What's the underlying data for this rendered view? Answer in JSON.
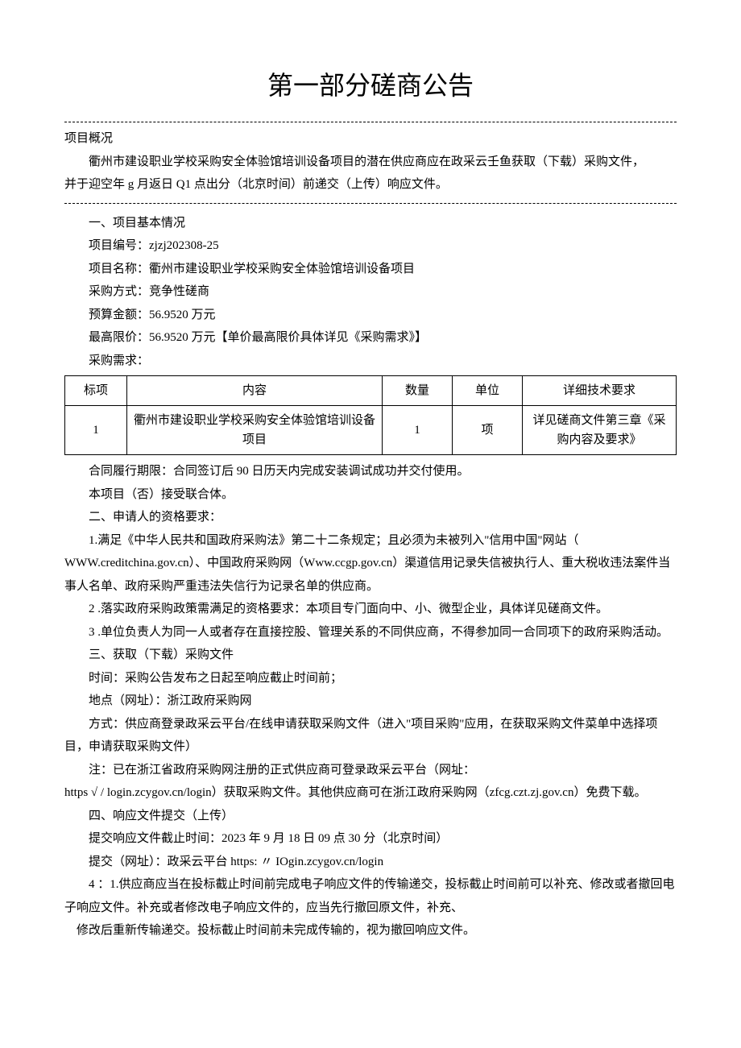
{
  "title": "第一部分磋商公告",
  "overview": {
    "heading": "项目概况",
    "line1": "衢州市建设职业学校采购安全体验馆培训设备项目的潜在供应商应在政采云壬鱼获取（下载）采购文件，",
    "line2": "并于迎空年 g 月返日 Q1 点出分（北京时间）前递交（上传）响应文件。"
  },
  "section1": {
    "heading": "一、项目基本情况",
    "project_no": "项目编号：zjzj202308-25",
    "project_name": "项目名称：衢州市建设职业学校采购安全体验馆培训设备项目",
    "method": "采购方式：竞争性磋商",
    "budget": "预算金额：56.9520 万元",
    "ceiling": "最高限价：56.9520 万元【单价最高限价具体详见《采购需求》】",
    "req_label": "采购需求："
  },
  "table": {
    "headers": {
      "bx": "标项",
      "nr": "内容",
      "sl": "数量",
      "dw": "单位",
      "xq": "详细技术要求"
    },
    "row": {
      "bx": "1",
      "nr": "衢州市建设职业学校采购安全体验馆培训设备项目",
      "sl": "1",
      "dw": "项",
      "xq": "详见磋商文件第三章《采购内容及要求》"
    }
  },
  "after_table": {
    "contract": "合同履行期限：合同签订后 90 日历天内完成安装调试成功并交付使用。",
    "consortium": "本项目（否）接受联合体。"
  },
  "section2": {
    "heading": "二、申请人的资格要求：",
    "p1a": "1.满足《中华人民共和国政府采购法》第二十二条规定；且必须为未被列入\"信用中国\"网站（",
    "p1b": "WWW.creditchina.gov.cn）、中国政府采购网（Www.ccgp.gov.cn）渠道信用记录失信被执行人、重大税收违法案件当事人名单、政府采购严重违法失信行为记录名单的供应商。",
    "p2": "2 .落实政府采购政策需满足的资格要求：本项目专门面向中、小、微型企业，具体详见磋商文件。",
    "p3": "3 .单位负责人为同一人或者存在直接控股、管理关系的不同供应商，不得参加同一合同项下的政府采购活动。"
  },
  "section3": {
    "heading": "三、获取（下载）采购文件",
    "time": "时间：采购公告发布之日起至响应截止时间前；",
    "place": "地点（网址）：浙江政府采购网",
    "method": "方式：供应商登录政采云平台/在线申请获取采购文件（进入\"项目采购\"应用，在获取采购文件菜单中选择项目，申请获取采购文件）",
    "note_a": "注：已在浙江省政府采购网注册的正式供应商可登录政采云平台（网址：",
    "note_b": "https √ / login.zcygov.cn/login）获取采购文件。其他供应商可在浙江政府采购网（zfcg.czt.zj.gov.cn）免费下载。"
  },
  "section4": {
    "heading": "四、响应文件提交（上传）",
    "deadline": "提交响应文件截止时间：2023 年 9 月 18 日 09 点 30 分（北京时间）",
    "submit_url": "提交（网址）：政采云平台 https: 〃 IOgin.zcygov.cn/login",
    "p4": "4 ：1.供应商应当在投标截止时间前完成电子响应文件的传输递交，投标截止时间前可以补充、修改或者撤回电子响应文件。补充或者修改电子响应文件的，应当先行撤回原文件，补充、",
    "p4b": "修改后重新传输递交。投标截止时间前未完成传输的，视为撤回响应文件。"
  }
}
